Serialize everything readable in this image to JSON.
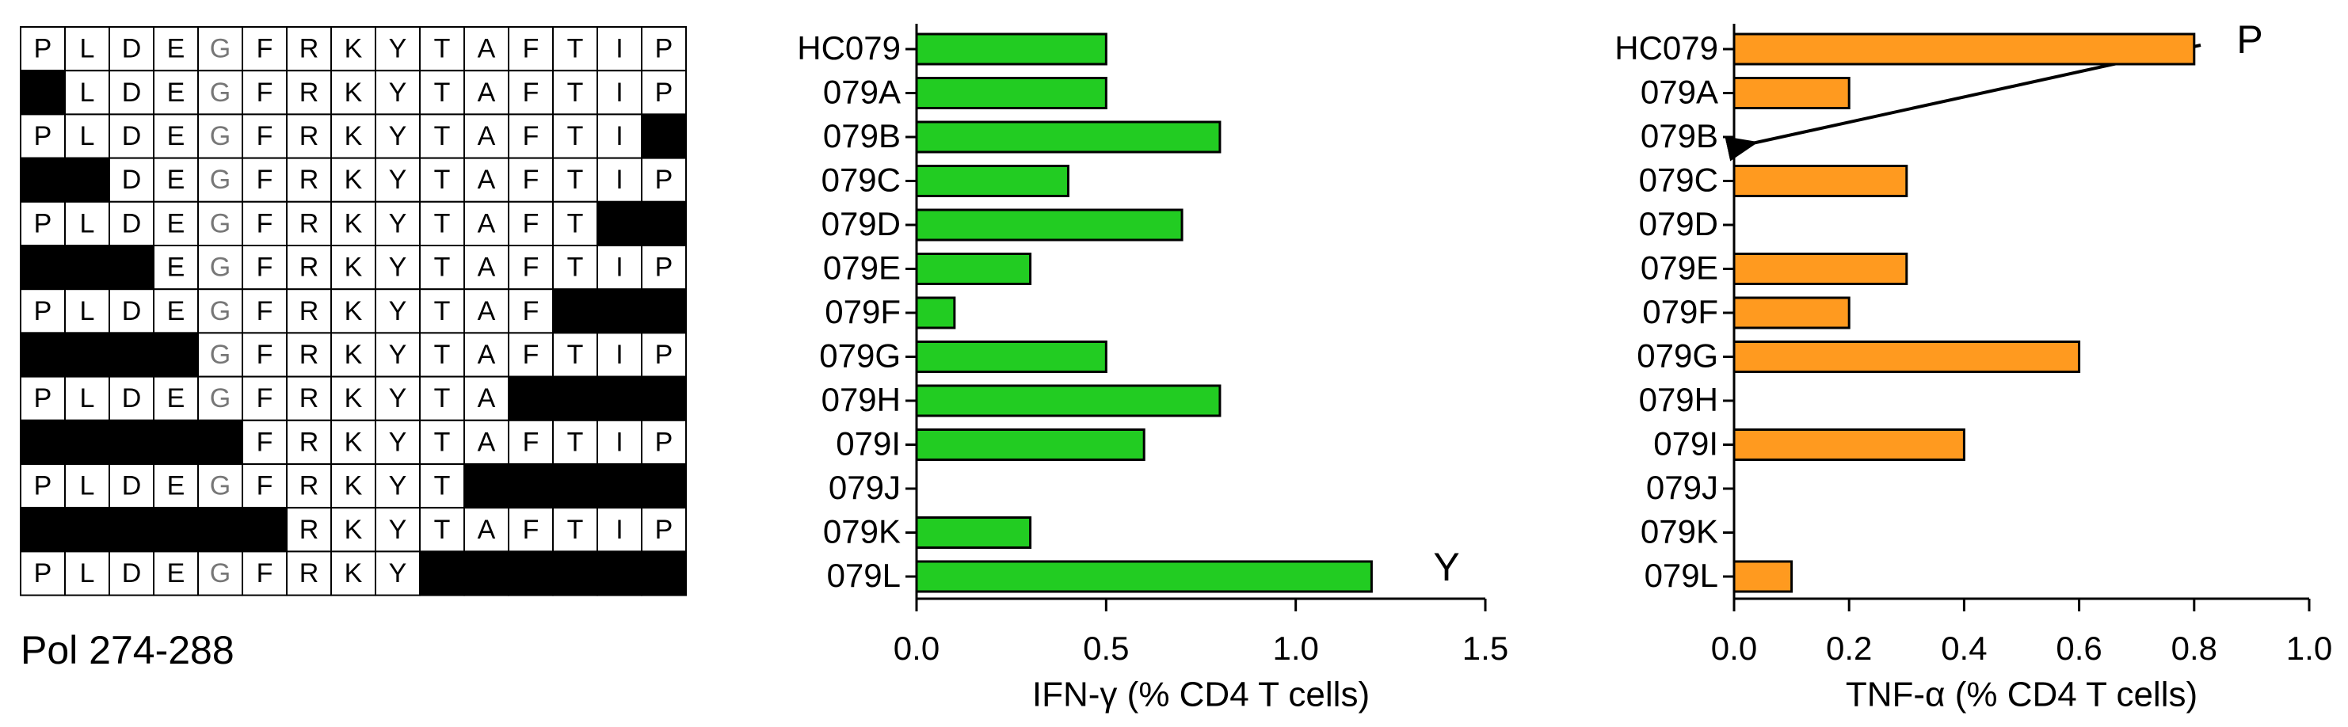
{
  "peptide_grid": {
    "caption": "Pol 274-288",
    "rows": [
      [
        "P",
        "L",
        "D",
        "E",
        "G",
        "F",
        "R",
        "K",
        "Y",
        "T",
        "A",
        "F",
        "T",
        "I",
        "P"
      ],
      [
        null,
        "L",
        "D",
        "E",
        "G",
        "F",
        "R",
        "K",
        "Y",
        "T",
        "A",
        "F",
        "T",
        "I",
        "P"
      ],
      [
        "P",
        "L",
        "D",
        "E",
        "G",
        "F",
        "R",
        "K",
        "Y",
        "T",
        "A",
        "F",
        "T",
        "I",
        null
      ],
      [
        null,
        null,
        "D",
        "E",
        "G",
        "F",
        "R",
        "K",
        "Y",
        "T",
        "A",
        "F",
        "T",
        "I",
        "P"
      ],
      [
        "P",
        "L",
        "D",
        "E",
        "G",
        "F",
        "R",
        "K",
        "Y",
        "T",
        "A",
        "F",
        "T",
        null,
        null
      ],
      [
        null,
        null,
        null,
        "E",
        "G",
        "F",
        "R",
        "K",
        "Y",
        "T",
        "A",
        "F",
        "T",
        "I",
        "P"
      ],
      [
        "P",
        "L",
        "D",
        "E",
        "G",
        "F",
        "R",
        "K",
        "Y",
        "T",
        "A",
        "F",
        null,
        null,
        null
      ],
      [
        null,
        null,
        null,
        null,
        "G",
        "F",
        "R",
        "K",
        "Y",
        "T",
        "A",
        "F",
        "T",
        "I",
        "P"
      ],
      [
        "P",
        "L",
        "D",
        "E",
        "G",
        "F",
        "R",
        "K",
        "Y",
        "T",
        "A",
        null,
        null,
        null,
        null
      ],
      [
        null,
        null,
        null,
        null,
        null,
        "F",
        "R",
        "K",
        "Y",
        "T",
        "A",
        "F",
        "T",
        "I",
        "P"
      ],
      [
        "P",
        "L",
        "D",
        "E",
        "G",
        "F",
        "R",
        "K",
        "Y",
        "T",
        null,
        null,
        null,
        null,
        null
      ],
      [
        null,
        null,
        null,
        null,
        null,
        null,
        "R",
        "K",
        "Y",
        "T",
        "A",
        "F",
        "T",
        "I",
        "P"
      ],
      [
        "P",
        "L",
        "D",
        "E",
        "G",
        "F",
        "R",
        "K",
        "Y",
        null,
        null,
        null,
        null,
        null,
        null
      ]
    ]
  },
  "chart_data": [
    {
      "type": "barh",
      "x_label": "IFN-γ (% CD4 T cells)",
      "categories": [
        "HC079",
        "079A",
        "079B",
        "079C",
        "079D",
        "079E",
        "079F",
        "079G",
        "079H",
        "079I",
        "079J",
        "079K",
        "079L"
      ],
      "values": [
        0.5,
        0.5,
        0.8,
        0.4,
        0.7,
        0.3,
        0.1,
        0.5,
        0.8,
        0.6,
        0,
        0.3,
        1.2
      ],
      "color": "#22cc22",
      "xlim": [
        0,
        1.5
      ],
      "xticks": [
        {
          "value": 0,
          "label": "0.0"
        },
        {
          "value": 0.5,
          "label": "0.5"
        },
        {
          "value": 1,
          "label": "1.0"
        },
        {
          "value": 1.5,
          "label": "1.5"
        }
      ],
      "annotation": "Y"
    },
    {
      "type": "barh",
      "x_label": "TNF-α (% CD4 T cells)",
      "categories": [
        "HC079",
        "079A",
        "079B",
        "079C",
        "079D",
        "079E",
        "079F",
        "079G",
        "079H",
        "079I",
        "079J",
        "079K",
        "079L"
      ],
      "values": [
        0.8,
        0.2,
        0,
        0.3,
        0,
        0.3,
        0.2,
        0.6,
        0,
        0.4,
        0,
        0,
        0.1
      ],
      "color": "#ff9a1f",
      "xlim": [
        0,
        1
      ],
      "xticks": [
        {
          "value": 0,
          "label": "0.0"
        },
        {
          "value": 0.2,
          "label": "0.2"
        },
        {
          "value": 0.4,
          "label": "0.4"
        },
        {
          "value": 0.6,
          "label": "0.6"
        },
        {
          "value": 0.8,
          "label": "0.8"
        },
        {
          "value": 1,
          "label": "1.0"
        }
      ],
      "annotation": "P"
    }
  ]
}
